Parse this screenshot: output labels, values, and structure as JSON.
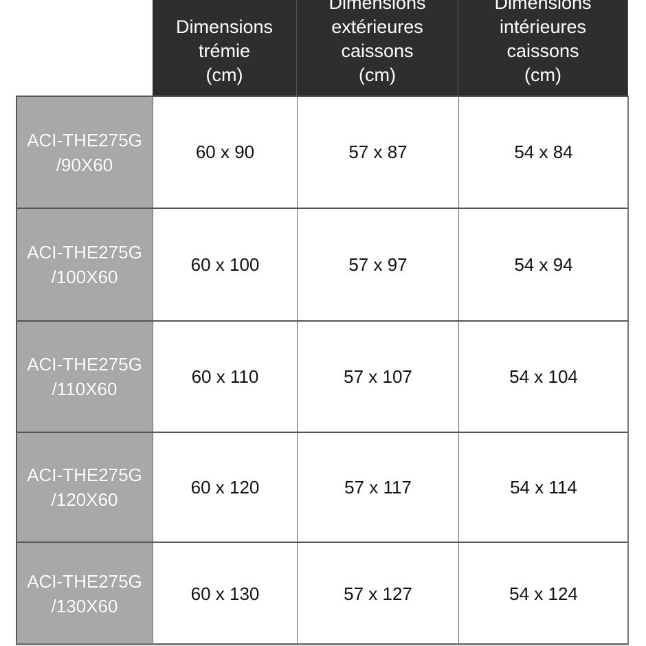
{
  "table": {
    "headers": [
      [
        "Dimensions",
        "trémie",
        "(cm)"
      ],
      [
        "Dimensions",
        "extérieures",
        "caissons",
        "(cm)"
      ],
      [
        "Dimensions",
        "intérieures",
        "caissons",
        "(cm)"
      ]
    ],
    "rows": [
      {
        "model": [
          "ACI-THE275G",
          "/90X60"
        ],
        "cells": [
          "60 x 90",
          "57 x 87",
          "54 x 84"
        ]
      },
      {
        "model": [
          "ACI-THE275G",
          "/100X60"
        ],
        "cells": [
          "60 x 100",
          "57 x 97",
          "54 x 94"
        ]
      },
      {
        "model": [
          "ACI-THE275G",
          "/110X60"
        ],
        "cells": [
          "60 x 110",
          "57 x 107",
          "54 x 104"
        ]
      },
      {
        "model": [
          "ACI-THE275G",
          "/120X60"
        ],
        "cells": [
          "60 x 120",
          "57 x 117",
          "54 x 114"
        ]
      },
      {
        "model": [
          "ACI-THE275G",
          "/130X60"
        ],
        "cells": [
          "60 x 130",
          "57 x 127",
          "54 x 124"
        ]
      }
    ],
    "colors": {
      "header_bg": "#2e2e2e",
      "model_bg": "#a8a8a8"
    }
  }
}
